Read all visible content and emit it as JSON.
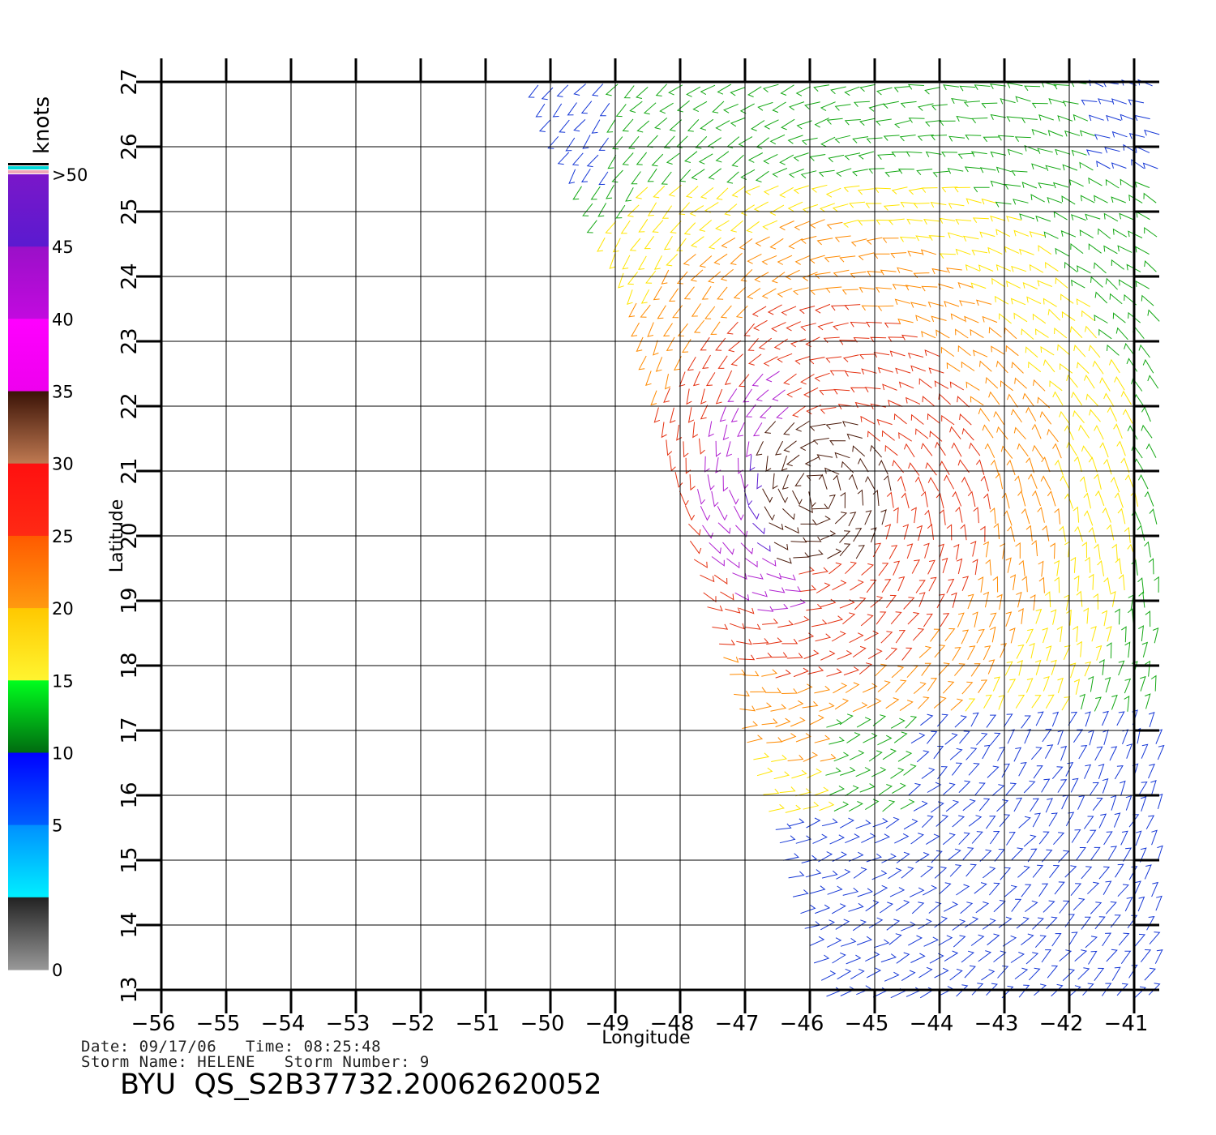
{
  "map": {
    "x_axis": {
      "title": "Longitude",
      "ticks": [
        -56,
        -55,
        -54,
        -53,
        -52,
        -51,
        -50,
        -49,
        -48,
        -47,
        -46,
        -45,
        -44,
        -43,
        -42,
        -41
      ]
    },
    "y_axis": {
      "title": "Latitude",
      "ticks": [
        13,
        14,
        15,
        16,
        17,
        18,
        19,
        20,
        21,
        22,
        23,
        24,
        25,
        26,
        27
      ]
    },
    "grid": true,
    "storm_center": {
      "lon": -45.9,
      "lat": 20.7
    }
  },
  "colorbar": {
    "title": "knots",
    "labels": [
      ">50",
      "45",
      "40",
      "35",
      "30",
      "25",
      "20",
      "15",
      "10",
      "5",
      "0"
    ],
    "bands": [
      {
        "top": "#7a17c9",
        "bottom": "#5a1ad0"
      },
      {
        "top": "#9a10c8",
        "bottom": "#c20adf"
      },
      {
        "top": "#ff00ff",
        "bottom": "#ee00ee"
      },
      {
        "top": "#3a1206",
        "bottom": "#c07a52"
      },
      {
        "top": "#ff1010",
        "bottom": "#ff2a14"
      },
      {
        "top": "#ff5a00",
        "bottom": "#ff9a10"
      },
      {
        "top": "#ffc800",
        "bottom": "#fff530"
      },
      {
        "top": "#00ff1e",
        "bottom": "#006a10"
      },
      {
        "top": "#0000ff",
        "bottom": "#0060ff"
      },
      {
        "top": "#0090ff",
        "bottom": "#00f0ff"
      },
      {
        "top": "#222222",
        "bottom": "#999999"
      }
    ]
  },
  "speed_colors": [
    "#1638d6",
    "#14a814",
    "#ffe500",
    "#ff8a00",
    "#e43010",
    "#4a1a0a",
    "#b020d0",
    "#5a1ad0"
  ],
  "info": {
    "date_line": "Date: 09/17/06   Time: 08:25:48",
    "storm_line": "Storm Name: HELENE   Storm Number: 9",
    "product": "BYU  QS_S2B37732.20062620052"
  }
}
